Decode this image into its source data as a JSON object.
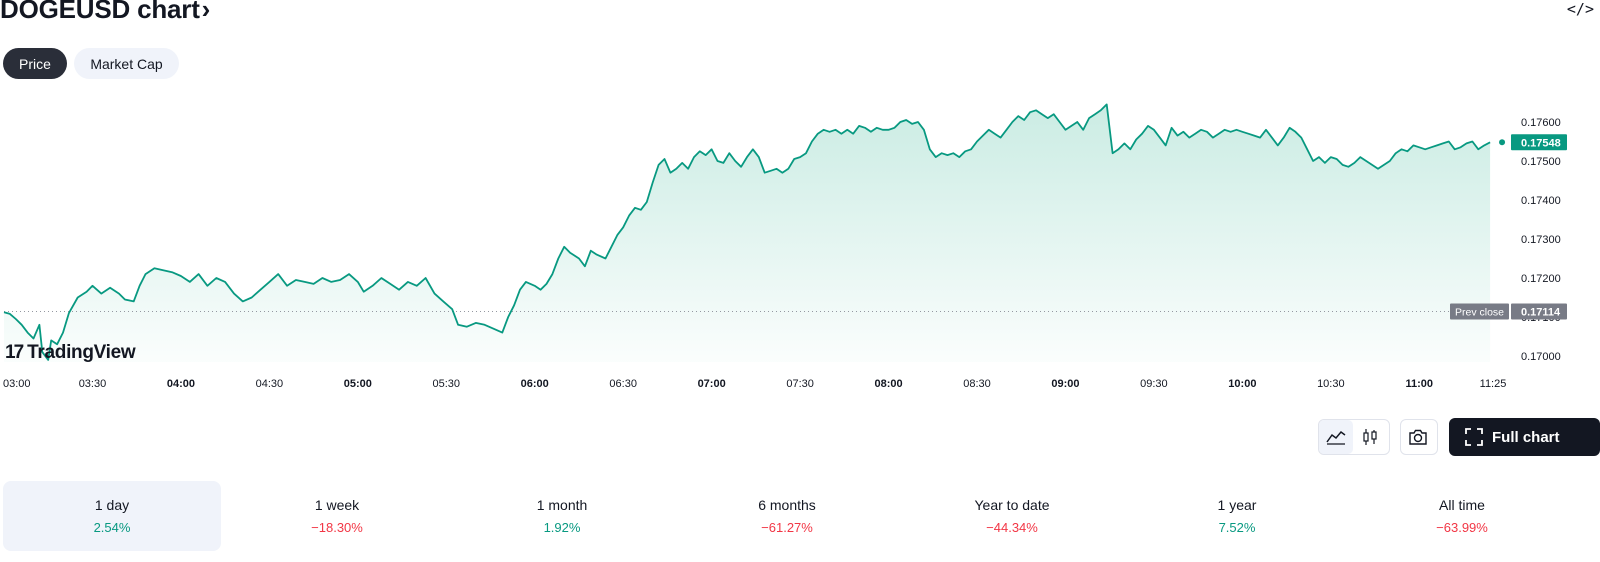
{
  "header": {
    "title": "DOGEUSD chart",
    "title_chevron": "›",
    "embed_icon": "code-embed-icon",
    "embed_glyph": "</>"
  },
  "tabs": [
    {
      "label": "Price",
      "active": true
    },
    {
      "label": "Market Cap",
      "active": false
    }
  ],
  "chart_data": {
    "type": "area",
    "symbol": "DOGEUSD",
    "line_color": "#089981",
    "fill_color": "#c8ebe2",
    "ylim": [
      0.1696,
      0.1765
    ],
    "y_ticks": [
      "0.17000",
      "0.17100",
      "0.17200",
      "0.17300",
      "0.17400",
      "0.17500",
      "0.17600"
    ],
    "x_ticks": [
      {
        "label": "03:00",
        "bold": false
      },
      {
        "label": "03:30",
        "bold": false
      },
      {
        "label": "04:00",
        "bold": true
      },
      {
        "label": "04:30",
        "bold": false
      },
      {
        "label": "05:00",
        "bold": true
      },
      {
        "label": "05:30",
        "bold": false
      },
      {
        "label": "06:00",
        "bold": true
      },
      {
        "label": "06:30",
        "bold": false
      },
      {
        "label": "07:00",
        "bold": true
      },
      {
        "label": "07:30",
        "bold": false
      },
      {
        "label": "08:00",
        "bold": true
      },
      {
        "label": "08:30",
        "bold": false
      },
      {
        "label": "09:00",
        "bold": true
      },
      {
        "label": "09:30",
        "bold": false
      },
      {
        "label": "10:00",
        "bold": true
      },
      {
        "label": "10:30",
        "bold": false
      },
      {
        "label": "11:00",
        "bold": true
      },
      {
        "label": "11:25",
        "bold": false
      }
    ],
    "x_tick_minutes": [
      180,
      210,
      240,
      270,
      300,
      330,
      360,
      390,
      420,
      450,
      480,
      510,
      540,
      570,
      600,
      630,
      660,
      685
    ],
    "last_price": "0.17548",
    "last_value": 0.17548,
    "prev_close_label": "Prev close",
    "prev_close": "0.17114",
    "prev_close_value": 0.17114,
    "series": [
      {
        "values": [
          [
            180,
            0.17112
          ],
          [
            182,
            0.17108
          ],
          [
            184,
            0.17095
          ],
          [
            186,
            0.1708
          ],
          [
            188,
            0.1706
          ],
          [
            190,
            0.17045
          ],
          [
            192,
            0.1708
          ],
          [
            193,
            0.1701
          ],
          [
            195,
            0.1699
          ],
          [
            196,
            0.1704
          ],
          [
            198,
            0.1703
          ],
          [
            200,
            0.1706
          ],
          [
            202,
            0.1711
          ],
          [
            205,
            0.1715
          ],
          [
            208,
            0.17165
          ],
          [
            210,
            0.1718
          ],
          [
            213,
            0.1716
          ],
          [
            216,
            0.17175
          ],
          [
            219,
            0.1716
          ],
          [
            221,
            0.17145
          ],
          [
            224,
            0.1714
          ],
          [
            226,
            0.1718
          ],
          [
            228,
            0.1721
          ],
          [
            231,
            0.17225
          ],
          [
            234,
            0.1722
          ],
          [
            237,
            0.17215
          ],
          [
            240,
            0.17205
          ],
          [
            243,
            0.1719
          ],
          [
            246,
            0.1721
          ],
          [
            249,
            0.1718
          ],
          [
            252,
            0.172
          ],
          [
            255,
            0.1719
          ],
          [
            258,
            0.1716
          ],
          [
            261,
            0.1714
          ],
          [
            264,
            0.1715
          ],
          [
            267,
            0.1717
          ],
          [
            270,
            0.1719
          ],
          [
            273,
            0.1721
          ],
          [
            276,
            0.1718
          ],
          [
            279,
            0.17195
          ],
          [
            282,
            0.1719
          ],
          [
            285,
            0.17185
          ],
          [
            288,
            0.172
          ],
          [
            291,
            0.1719
          ],
          [
            294,
            0.17195
          ],
          [
            297,
            0.1721
          ],
          [
            300,
            0.1719
          ],
          [
            302,
            0.17165
          ],
          [
            305,
            0.1718
          ],
          [
            308,
            0.172
          ],
          [
            311,
            0.17185
          ],
          [
            314,
            0.1717
          ],
          [
            317,
            0.1719
          ],
          [
            320,
            0.1718
          ],
          [
            323,
            0.172
          ],
          [
            326,
            0.1716
          ],
          [
            329,
            0.1714
          ],
          [
            332,
            0.1712
          ],
          [
            334,
            0.1708
          ],
          [
            337,
            0.17075
          ],
          [
            340,
            0.17085
          ],
          [
            343,
            0.1708
          ],
          [
            346,
            0.1707
          ],
          [
            349,
            0.1706
          ],
          [
            351,
            0.171
          ],
          [
            353,
            0.1713
          ],
          [
            355,
            0.1717
          ],
          [
            357,
            0.1719
          ],
          [
            360,
            0.1718
          ],
          [
            362,
            0.1717
          ],
          [
            364,
            0.17185
          ],
          [
            366,
            0.1721
          ],
          [
            368,
            0.1725
          ],
          [
            370,
            0.1728
          ],
          [
            372,
            0.17265
          ],
          [
            375,
            0.1725
          ],
          [
            377,
            0.1723
          ],
          [
            379,
            0.1727
          ],
          [
            381,
            0.1726
          ],
          [
            384,
            0.1725
          ],
          [
            386,
            0.1728
          ],
          [
            388,
            0.1731
          ],
          [
            390,
            0.1733
          ],
          [
            392,
            0.1736
          ],
          [
            394,
            0.1738
          ],
          [
            396,
            0.17375
          ],
          [
            398,
            0.17395
          ],
          [
            400,
            0.17445
          ],
          [
            402,
            0.1749
          ],
          [
            404,
            0.17505
          ],
          [
            406,
            0.1747
          ],
          [
            408,
            0.1748
          ],
          [
            410,
            0.17495
          ],
          [
            412,
            0.1748
          ],
          [
            414,
            0.1751
          ],
          [
            416,
            0.17525
          ],
          [
            418,
            0.17515
          ],
          [
            420,
            0.1753
          ],
          [
            422,
            0.175
          ],
          [
            424,
            0.17495
          ],
          [
            426,
            0.1752
          ],
          [
            428,
            0.175
          ],
          [
            430,
            0.17485
          ],
          [
            432,
            0.1751
          ],
          [
            434,
            0.1753
          ],
          [
            436,
            0.1751
          ],
          [
            438,
            0.1747
          ],
          [
            440,
            0.17475
          ],
          [
            442,
            0.1748
          ],
          [
            444,
            0.1747
          ],
          [
            446,
            0.1748
          ],
          [
            448,
            0.17505
          ],
          [
            450,
            0.1751
          ],
          [
            452,
            0.1752
          ],
          [
            454,
            0.1755
          ],
          [
            456,
            0.1757
          ],
          [
            458,
            0.1758
          ],
          [
            460,
            0.17575
          ],
          [
            462,
            0.1758
          ],
          [
            464,
            0.1757
          ],
          [
            466,
            0.1758
          ],
          [
            468,
            0.1757
          ],
          [
            470,
            0.1759
          ],
          [
            472,
            0.17585
          ],
          [
            474,
            0.17575
          ],
          [
            476,
            0.17585
          ],
          [
            478,
            0.1758
          ],
          [
            480,
            0.1758
          ],
          [
            482,
            0.17585
          ],
          [
            484,
            0.176
          ],
          [
            486,
            0.17605
          ],
          [
            488,
            0.17595
          ],
          [
            490,
            0.176
          ],
          [
            492,
            0.1758
          ],
          [
            494,
            0.1753
          ],
          [
            496,
            0.1751
          ],
          [
            498,
            0.1752
          ],
          [
            500,
            0.17515
          ],
          [
            502,
            0.1752
          ],
          [
            504,
            0.1751
          ],
          [
            506,
            0.17525
          ],
          [
            508,
            0.1753
          ],
          [
            510,
            0.1755
          ],
          [
            512,
            0.17565
          ],
          [
            514,
            0.1758
          ],
          [
            516,
            0.1757
          ],
          [
            518,
            0.1756
          ],
          [
            520,
            0.1758
          ],
          [
            522,
            0.176
          ],
          [
            524,
            0.17615
          ],
          [
            526,
            0.17605
          ],
          [
            528,
            0.17625
          ],
          [
            530,
            0.1763
          ],
          [
            532,
            0.1762
          ],
          [
            534,
            0.1761
          ],
          [
            536,
            0.1762
          ],
          [
            538,
            0.176
          ],
          [
            540,
            0.1758
          ],
          [
            542,
            0.1759
          ],
          [
            544,
            0.176
          ],
          [
            546,
            0.1758
          ],
          [
            548,
            0.1761
          ],
          [
            550,
            0.1762
          ],
          [
            552,
            0.1763
          ],
          [
            554,
            0.17645
          ],
          [
            556,
            0.1752
          ],
          [
            558,
            0.1753
          ],
          [
            560,
            0.17545
          ],
          [
            562,
            0.1753
          ],
          [
            564,
            0.17555
          ],
          [
            566,
            0.1757
          ],
          [
            568,
            0.1759
          ],
          [
            570,
            0.1758
          ],
          [
            572,
            0.1756
          ],
          [
            574,
            0.1754
          ],
          [
            576,
            0.17585
          ],
          [
            578,
            0.17565
          ],
          [
            580,
            0.17575
          ],
          [
            582,
            0.1756
          ],
          [
            584,
            0.1757
          ],
          [
            586,
            0.1758
          ],
          [
            588,
            0.17575
          ],
          [
            590,
            0.1756
          ],
          [
            592,
            0.1757
          ],
          [
            594,
            0.1758
          ],
          [
            596,
            0.17575
          ],
          [
            598,
            0.1758
          ],
          [
            600,
            0.17575
          ],
          [
            602,
            0.1757
          ],
          [
            604,
            0.17565
          ],
          [
            606,
            0.1756
          ],
          [
            608,
            0.1758
          ],
          [
            610,
            0.1756
          ],
          [
            612,
            0.1754
          ],
          [
            614,
            0.1756
          ],
          [
            616,
            0.17585
          ],
          [
            618,
            0.17575
          ],
          [
            620,
            0.1756
          ],
          [
            622,
            0.1753
          ],
          [
            624,
            0.175
          ],
          [
            626,
            0.1751
          ],
          [
            628,
            0.17495
          ],
          [
            630,
            0.1751
          ],
          [
            632,
            0.17505
          ],
          [
            634,
            0.1749
          ],
          [
            636,
            0.17485
          ],
          [
            638,
            0.17495
          ],
          [
            640,
            0.1751
          ],
          [
            642,
            0.175
          ],
          [
            644,
            0.1749
          ],
          [
            646,
            0.1748
          ],
          [
            648,
            0.1749
          ],
          [
            650,
            0.175
          ],
          [
            652,
            0.1752
          ],
          [
            654,
            0.1753
          ],
          [
            656,
            0.17525
          ],
          [
            658,
            0.1754
          ],
          [
            660,
            0.17535
          ],
          [
            662,
            0.1753
          ],
          [
            664,
            0.17535
          ],
          [
            666,
            0.1754
          ],
          [
            668,
            0.17545
          ],
          [
            670,
            0.1755
          ],
          [
            672,
            0.1753
          ],
          [
            674,
            0.17535
          ],
          [
            676,
            0.17545
          ],
          [
            678,
            0.1755
          ],
          [
            680,
            0.1753
          ],
          [
            682,
            0.1754
          ],
          [
            684,
            0.17548
          ]
        ]
      }
    ]
  },
  "watermark": {
    "mark": "17",
    "text": "TradingView"
  },
  "toolbar": {
    "line_icon": "line-chart-icon",
    "candles_icon": "candlestick-icon",
    "camera_icon": "camera-icon",
    "fullscreen_icon": "fullscreen-icon",
    "full_chart_label": "Full chart"
  },
  "periods": [
    {
      "label": "1 day",
      "value": "2.54%",
      "trend": "pos",
      "selected": true
    },
    {
      "label": "1 week",
      "value": "−18.30%",
      "trend": "neg",
      "selected": false
    },
    {
      "label": "1 month",
      "value": "1.92%",
      "trend": "pos",
      "selected": false
    },
    {
      "label": "6 months",
      "value": "−61.27%",
      "trend": "neg",
      "selected": false
    },
    {
      "label": "Year to date",
      "value": "−44.34%",
      "trend": "neg",
      "selected": false
    },
    {
      "label": "1 year",
      "value": "7.52%",
      "trend": "pos",
      "selected": false
    },
    {
      "label": "All time",
      "value": "−63.99%",
      "trend": "neg",
      "selected": false
    }
  ]
}
